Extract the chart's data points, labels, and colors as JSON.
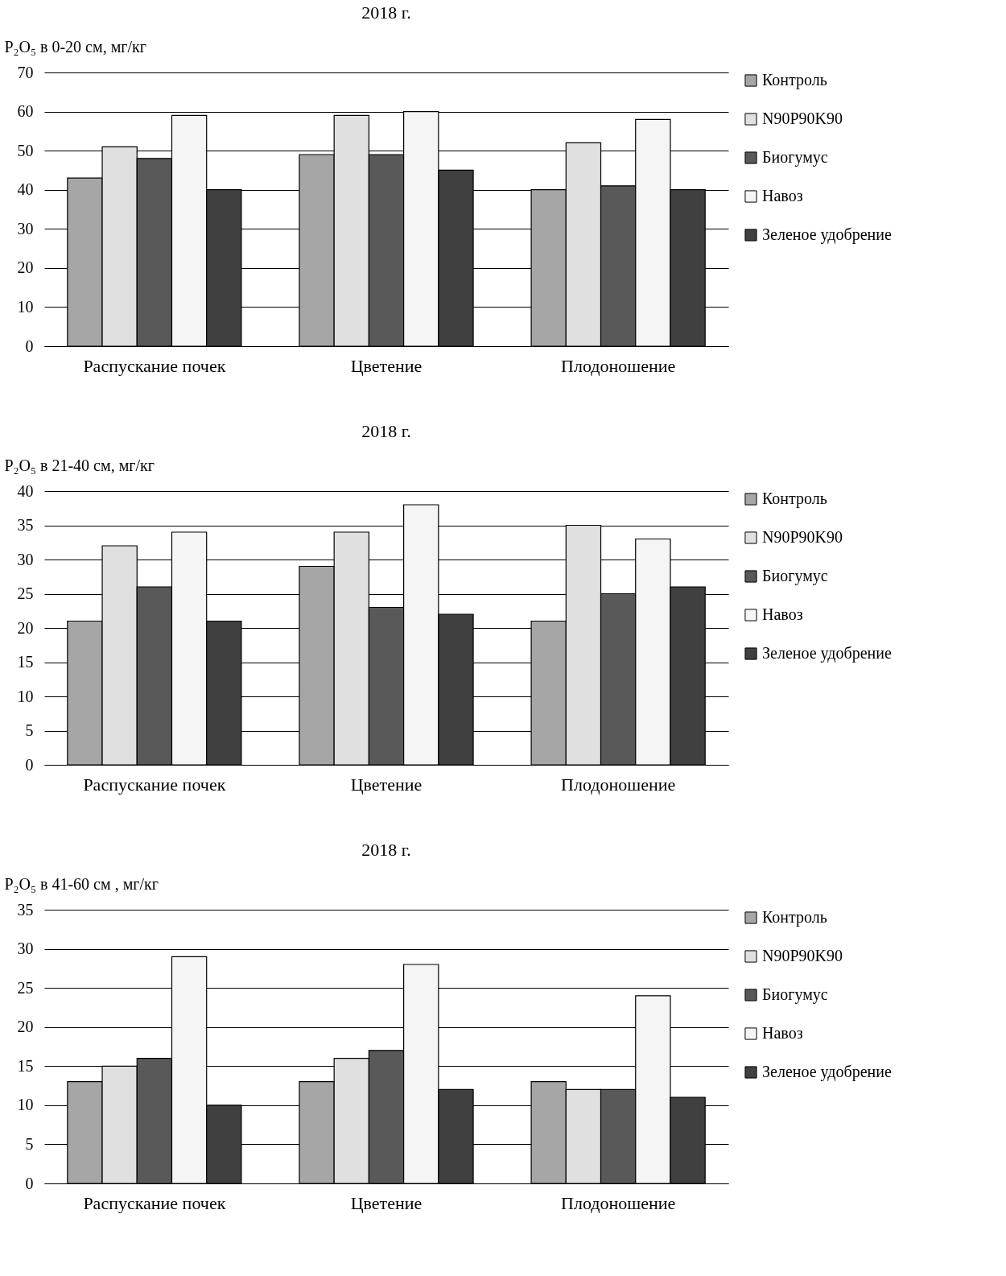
{
  "chart_data": [
    {
      "type": "bar",
      "title": "2018 г.",
      "ylabel": "P₂O₅ в 0-20 см,  мг/кг",
      "categories": [
        "Распускание почек",
        "Цветение",
        "Плодоношение"
      ],
      "ylim": [
        0,
        70
      ],
      "yticks": [
        0,
        10,
        20,
        30,
        40,
        50,
        60,
        70
      ],
      "grid": "y",
      "legend": "right",
      "series": [
        {
          "name": "Контроль",
          "color": "#a6a6a6",
          "values": [
            43,
            49,
            40
          ]
        },
        {
          "name": "N90P90K90",
          "color": "#e0e0e0",
          "values": [
            51,
            59,
            52
          ]
        },
        {
          "name": "Биогумус",
          "color": "#595959",
          "values": [
            48,
            49,
            41
          ]
        },
        {
          "name": "Навоз",
          "color": "#f5f5f5",
          "values": [
            59,
            60,
            58
          ]
        },
        {
          "name": "Зеленое удобрение",
          "color": "#404040",
          "values": [
            40,
            45,
            40
          ]
        }
      ]
    },
    {
      "type": "bar",
      "title": "2018 г.",
      "ylabel": "P₂O₅ в 21-40 см, мг/кг",
      "categories": [
        "Распускание почек",
        "Цветение",
        "Плодоношение"
      ],
      "ylim": [
        0,
        40
      ],
      "yticks": [
        0,
        5,
        10,
        15,
        20,
        25,
        30,
        35,
        40
      ],
      "grid": "y",
      "legend": "right",
      "series": [
        {
          "name": "Контроль",
          "color": "#a6a6a6",
          "values": [
            21,
            29,
            21
          ]
        },
        {
          "name": "N90P90K90",
          "color": "#e0e0e0",
          "values": [
            32,
            34,
            35
          ]
        },
        {
          "name": "Биогумус",
          "color": "#595959",
          "values": [
            26,
            23,
            25
          ]
        },
        {
          "name": "Навоз",
          "color": "#f5f5f5",
          "values": [
            34,
            38,
            33
          ]
        },
        {
          "name": "Зеленое удобрение",
          "color": "#404040",
          "values": [
            21,
            22,
            26
          ]
        }
      ]
    },
    {
      "type": "bar",
      "title": "2018 г.",
      "ylabel": "P₂O₅ в 41-60 см , мг/кг",
      "categories": [
        "Распускание почек",
        "Цветение",
        "Плодоношение"
      ],
      "ylim": [
        0,
        35
      ],
      "yticks": [
        0,
        5,
        10,
        15,
        20,
        25,
        30,
        35
      ],
      "grid": "y",
      "legend": "right",
      "series": [
        {
          "name": "Контроль",
          "color": "#a6a6a6",
          "values": [
            13,
            13,
            13
          ]
        },
        {
          "name": "N90P90K90",
          "color": "#e0e0e0",
          "values": [
            15,
            16,
            12
          ]
        },
        {
          "name": "Биогумус",
          "color": "#595959",
          "values": [
            16,
            17,
            12
          ]
        },
        {
          "name": "Навоз",
          "color": "#f5f5f5",
          "values": [
            29,
            28,
            24
          ]
        },
        {
          "name": "Зеленое удобрение",
          "color": "#404040",
          "values": [
            10,
            12,
            11
          ]
        }
      ]
    }
  ]
}
